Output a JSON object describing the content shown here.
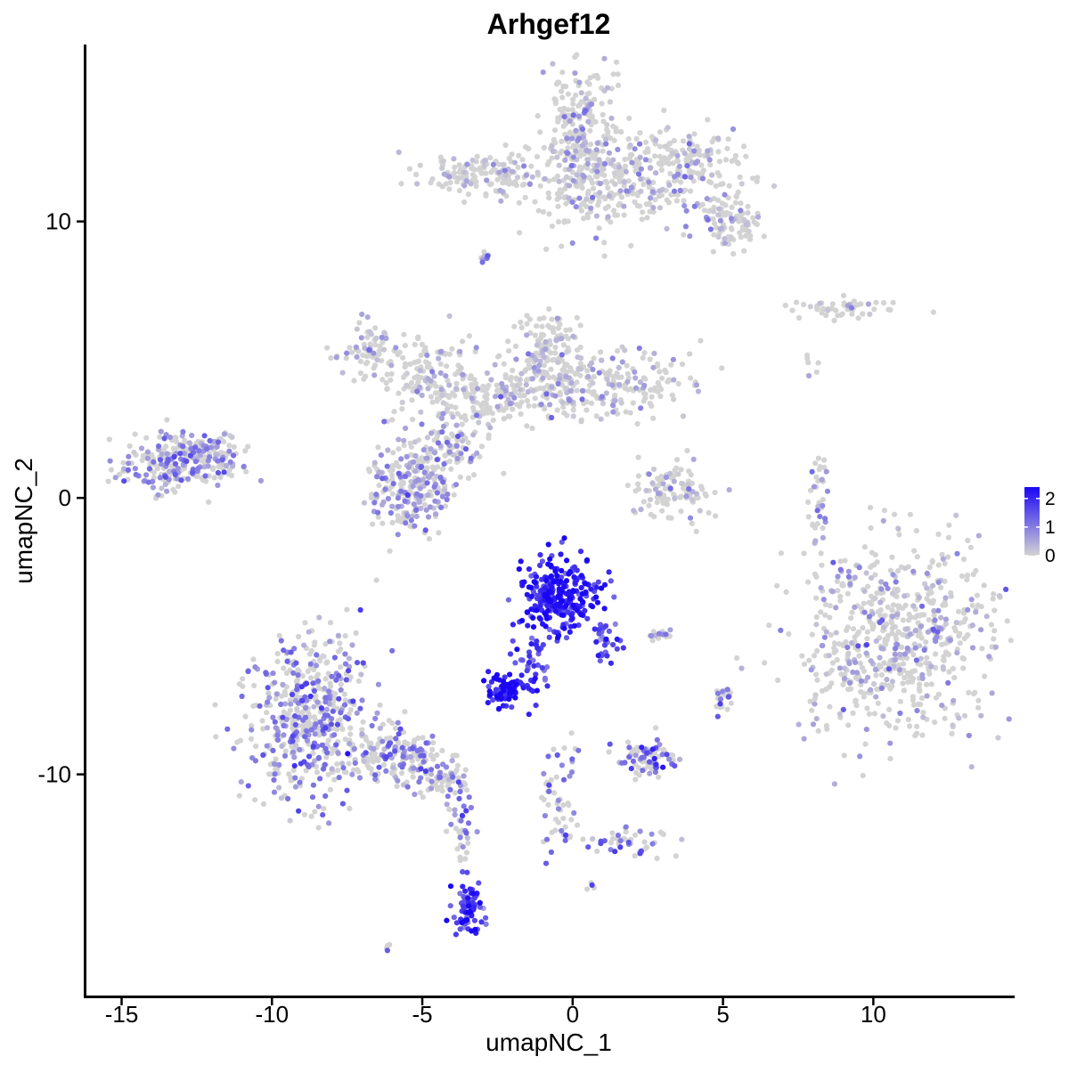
{
  "chart_data": {
    "type": "scatter",
    "title": "Arhgef12",
    "xlabel": "umapNC_1",
    "ylabel": "umapNC_2",
    "xlim": [
      -16.2,
      14.7
    ],
    "ylim": [
      -18.0,
      16.4
    ],
    "xticks": [
      -15,
      -10,
      -5,
      0,
      5,
      10
    ],
    "xtick_labels": [
      "-15",
      "-10",
      "-5",
      "0",
      "5",
      "10"
    ],
    "yticks": [
      -10,
      0,
      10
    ],
    "ytick_labels": [
      "-10",
      "0",
      "10"
    ],
    "grid": false,
    "color_scale": {
      "name": "expression",
      "low_color": "#d3d3d3",
      "high_color": "#1a06f5",
      "min": 0,
      "max": 2.4,
      "breaks": [
        0,
        1,
        2
      ],
      "break_labels": [
        "0",
        "1",
        "2"
      ]
    },
    "legend_position": "right",
    "clusters": [
      {
        "cx": 0.3,
        "cy": 13.2,
        "sx": 0.6,
        "sy": 1.4,
        "n": 260,
        "expr": 0.25
      },
      {
        "cx": -2.8,
        "cy": 11.7,
        "sx": 1.2,
        "sy": 0.4,
        "n": 160,
        "expr": 0.05
      },
      {
        "cx": 1.0,
        "cy": 11.2,
        "sx": 1.2,
        "sy": 0.8,
        "n": 160,
        "expr": 0.2
      },
      {
        "cx": 3.6,
        "cy": 12.0,
        "sx": 1.1,
        "sy": 0.7,
        "n": 200,
        "expr": 0.35
      },
      {
        "cx": 5.2,
        "cy": 10.0,
        "sx": 0.6,
        "sy": 0.5,
        "n": 100,
        "expr": 0.4
      },
      {
        "cx": 9.0,
        "cy": 6.9,
        "sx": 0.9,
        "sy": 0.2,
        "n": 50,
        "expr": 0.05
      },
      {
        "cx": -6.8,
        "cy": 5.3,
        "sx": 0.5,
        "sy": 0.5,
        "n": 70,
        "expr": 0.4
      },
      {
        "cx": -4.6,
        "cy": 4.5,
        "sx": 0.8,
        "sy": 0.7,
        "n": 120,
        "expr": 0.1
      },
      {
        "cx": -0.8,
        "cy": 5.3,
        "sx": 0.6,
        "sy": 0.8,
        "n": 120,
        "expr": 0.2
      },
      {
        "cx": 1.0,
        "cy": 4.2,
        "sx": 1.5,
        "sy": 0.6,
        "n": 220,
        "expr": 0.25
      },
      {
        "cx": -2.6,
        "cy": 3.7,
        "sx": 1.1,
        "sy": 0.6,
        "n": 160,
        "expr": 0.15
      },
      {
        "cx": -13.2,
        "cy": 1.3,
        "sx": 0.9,
        "sy": 0.55,
        "n": 240,
        "expr": 0.8
      },
      {
        "cx": -12.0,
        "cy": 1.6,
        "sx": 0.5,
        "sy": 0.3,
        "n": 60,
        "expr": 0.7
      },
      {
        "cx": -5.3,
        "cy": 0.5,
        "sx": 0.7,
        "sy": 0.85,
        "n": 260,
        "expr": 0.6
      },
      {
        "cx": -4.0,
        "cy": 1.8,
        "sx": 0.5,
        "sy": 0.5,
        "n": 80,
        "expr": 0.5
      },
      {
        "cx": 3.4,
        "cy": 0.2,
        "sx": 0.7,
        "sy": 0.6,
        "n": 110,
        "expr": 0.2
      },
      {
        "cx": 8.2,
        "cy": -0.2,
        "sx": 0.15,
        "sy": 0.8,
        "n": 35,
        "expr": 0.5
      },
      {
        "cx": 10.7,
        "cy": -5.0,
        "sx": 1.7,
        "sy": 1.8,
        "n": 650,
        "expr": 0.3
      },
      {
        "cx": -0.4,
        "cy": -3.6,
        "sx": 0.6,
        "sy": 0.7,
        "n": 280,
        "expr": 2.0
      },
      {
        "cx": -2.2,
        "cy": -7.0,
        "sx": 0.35,
        "sy": 0.3,
        "n": 80,
        "expr": 2.1
      },
      {
        "cx": -1.3,
        "cy": -6.0,
        "sx": 0.3,
        "sy": 0.6,
        "n": 40,
        "expr": 1.7
      },
      {
        "cx": 1.1,
        "cy": -5.1,
        "sx": 0.25,
        "sy": 0.4,
        "n": 30,
        "expr": 1.5
      },
      {
        "cx": -8.8,
        "cy": -7.9,
        "sx": 1.1,
        "sy": 1.5,
        "n": 520,
        "expr": 0.95
      },
      {
        "cx": -5.9,
        "cy": -9.4,
        "sx": 0.9,
        "sy": 0.4,
        "n": 160,
        "expr": 0.9
      },
      {
        "cx": -4.4,
        "cy": -10.2,
        "sx": 0.45,
        "sy": 0.3,
        "n": 60,
        "expr": 1.0
      },
      {
        "cx": -3.7,
        "cy": -12.0,
        "sx": 0.25,
        "sy": 0.9,
        "n": 40,
        "expr": 1.0
      },
      {
        "cx": -3.5,
        "cy": -14.8,
        "sx": 0.25,
        "sy": 0.5,
        "n": 70,
        "expr": 1.7
      },
      {
        "cx": 2.5,
        "cy": -9.4,
        "sx": 0.5,
        "sy": 0.3,
        "n": 90,
        "expr": 1.2
      },
      {
        "cx": -0.5,
        "cy": -10.6,
        "sx": 0.3,
        "sy": 1.0,
        "n": 50,
        "expr": 1.1
      },
      {
        "cx": 1.8,
        "cy": -12.4,
        "sx": 0.9,
        "sy": 0.25,
        "n": 50,
        "expr": 1.1
      },
      {
        "cx": 2.9,
        "cy": -5.0,
        "sx": 0.3,
        "sy": 0.1,
        "n": 15,
        "expr": 1.0
      },
      {
        "cx": 5.0,
        "cy": -7.2,
        "sx": 0.15,
        "sy": 0.25,
        "n": 20,
        "expr": 0.9
      },
      {
        "cx": -2.9,
        "cy": 8.7,
        "sx": 0.12,
        "sy": 0.15,
        "n": 8,
        "expr": 0.8
      },
      {
        "cx": 7.9,
        "cy": 4.7,
        "sx": 0.15,
        "sy": 0.2,
        "n": 6,
        "expr": 0.05
      },
      {
        "cx": -6.1,
        "cy": -16.3,
        "sx": 0.1,
        "sy": 0.1,
        "n": 4,
        "expr": 1.0
      },
      {
        "cx": 0.6,
        "cy": -14.0,
        "sx": 0.1,
        "sy": 0.1,
        "n": 4,
        "expr": 1.0
      }
    ]
  }
}
